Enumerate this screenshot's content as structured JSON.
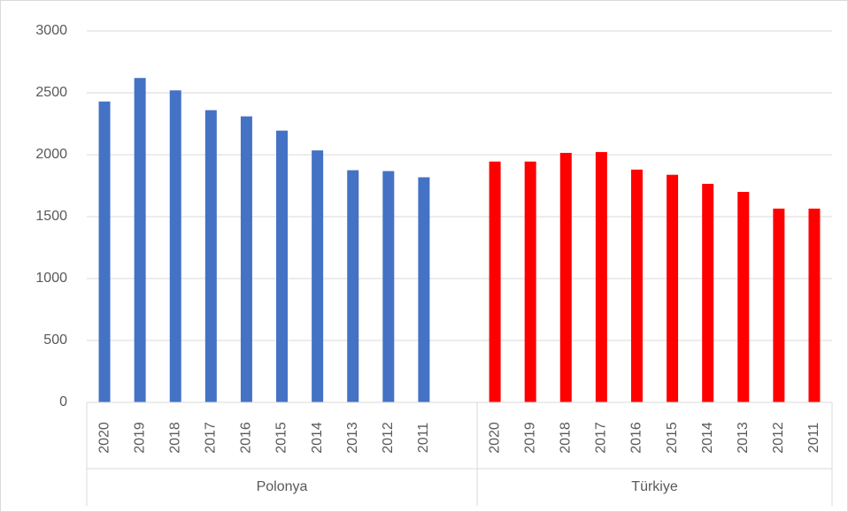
{
  "chart_data": {
    "type": "bar",
    "groups": [
      {
        "name": "Polonya",
        "color": "#4472c4",
        "categories": [
          "2020",
          "2019",
          "2018",
          "2017",
          "2016",
          "2015",
          "2014",
          "2013",
          "2012",
          "2011"
        ],
        "values": [
          2430,
          2620,
          2520,
          2360,
          2310,
          2195,
          2035,
          1875,
          1868,
          1818
        ]
      },
      {
        "name": "Türkiye",
        "color": "#ff0000",
        "categories": [
          "2020",
          "2019",
          "2018",
          "2017",
          "2016",
          "2015",
          "2014",
          "2013",
          "2012",
          "2011"
        ],
        "values": [
          1945,
          1945,
          2015,
          2022,
          1880,
          1838,
          1765,
          1700,
          1565,
          1565
        ]
      }
    ],
    "ylim": [
      0,
      3000
    ],
    "yticks": [
      0,
      500,
      1000,
      1500,
      2000,
      2500,
      3000
    ],
    "grid": true
  }
}
